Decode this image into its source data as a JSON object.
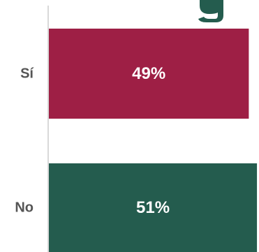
{
  "chart_data": {
    "type": "bar",
    "orientation": "horizontal",
    "categories": [
      "Sí",
      "No"
    ],
    "values": [
      49,
      51
    ],
    "value_labels": [
      "49%",
      "51%"
    ],
    "colors": [
      "#9e1f45",
      "#245c4e"
    ],
    "axis_color": "#d9d9d9",
    "title_fragment_color": "#245c4e",
    "grid": false,
    "legend": "none"
  }
}
